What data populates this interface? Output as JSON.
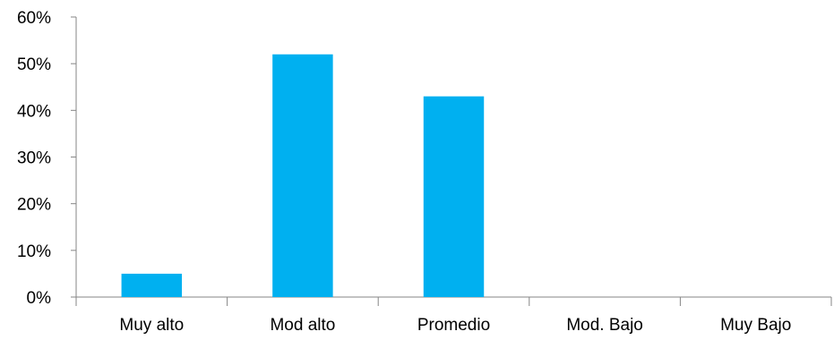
{
  "chart_data": {
    "type": "bar",
    "categories": [
      "Muy alto",
      "Mod alto",
      "Promedio",
      "Mod. Bajo",
      "Muy Bajo"
    ],
    "values": [
      5,
      52,
      43,
      0,
      0
    ],
    "y_ticks": [
      "0%",
      "10%",
      "20%",
      "30%",
      "40%",
      "50%",
      "60%"
    ],
    "ylim": [
      0,
      60
    ],
    "grid": false,
    "legend": "none",
    "bar_color": "#00b0f0",
    "axis_color": "#868686"
  }
}
